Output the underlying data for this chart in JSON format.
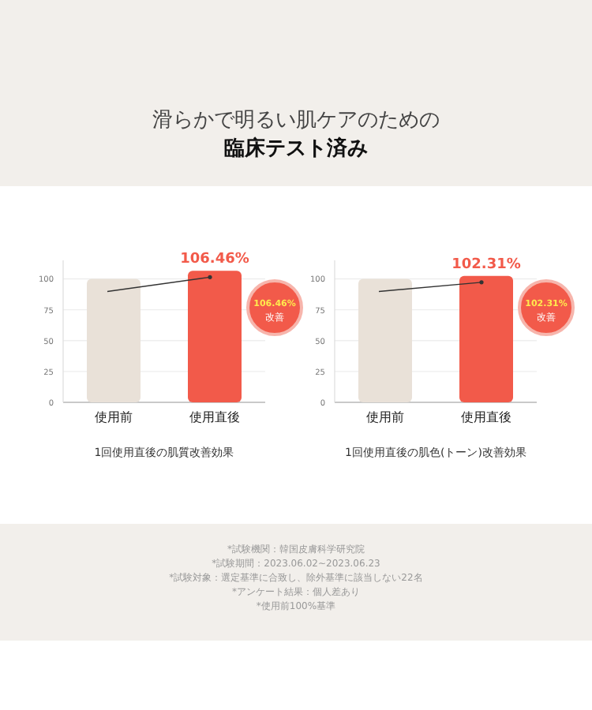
{
  "chart_data": [
    {
      "type": "bar",
      "title": "滑らかで明るい肌ケアのための",
      "subtitle": "臨床テスト済み",
      "categories": [
        "使用前",
        "使用直後"
      ],
      "values": [
        100,
        106.46
      ],
      "colors": [
        "#e9e1d8",
        "#f25a4a"
      ],
      "value_labels": [
        null,
        "106.46%"
      ],
      "ylim": [
        0,
        115
      ],
      "yticks": [
        0,
        25,
        50,
        75,
        100
      ],
      "grid": "y",
      "xlabel": "1回使用直後の肌質改善効果",
      "annotations": [
        "106.46%",
        "改善"
      ]
    },
    {
      "type": "bar",
      "categories": [
        "使用前",
        "使用直後"
      ],
      "values": [
        100,
        102.31
      ],
      "colors": [
        "#e9e1d8",
        "#f25a4a"
      ],
      "value_labels": [
        null,
        "102.31%"
      ],
      "ylim": [
        0,
        115
      ],
      "yticks": [
        0,
        25,
        50,
        75,
        100
      ],
      "grid": "y",
      "xlabel": "1回使用直後の肌色(トーン)改善効果",
      "annotations": [
        "102.31%",
        "改善",
        "*試験機関：韓国皮膚科学研究院",
        "*試験期間：2023.06.02~2023.06.23",
        "*試験対象：選定基準に合致し、除外基準に該当しない22名",
        "*アンケート結果：個人差あり",
        "*使用前100%基準"
      ]
    }
  ]
}
